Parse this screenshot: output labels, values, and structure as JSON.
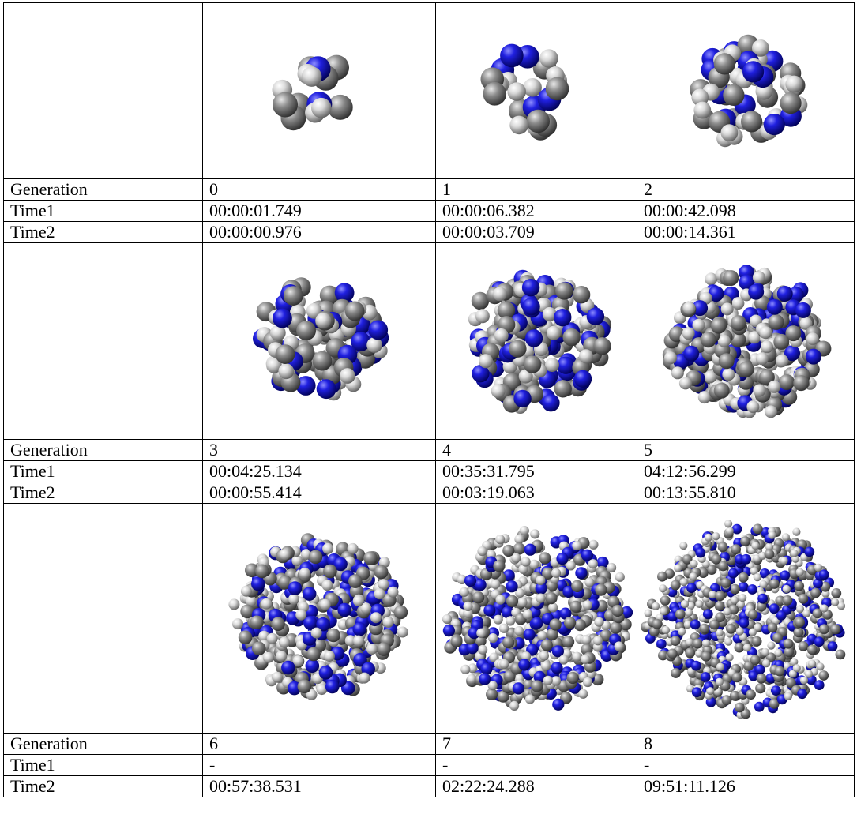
{
  "table": {
    "row_labels": [
      "Generation",
      "Time1",
      "Time2"
    ],
    "groups": [
      {
        "generation": [
          "0",
          "1",
          "2"
        ],
        "time1": [
          "00:00:01.749",
          "00:00:06.382",
          "00:00:42.098"
        ],
        "time2": [
          "00:00:00.976",
          "00:00:03.709",
          "00:00:14.361"
        ]
      },
      {
        "generation": [
          "3",
          "4",
          "5"
        ],
        "time1": [
          "00:04:25.134",
          "00:35:31.795",
          "04:12:56.299"
        ],
        "time2": [
          "00:00:55.414",
          "00:03:19.063",
          "00:13:55.810"
        ]
      },
      {
        "generation": [
          "6",
          "7",
          "8"
        ],
        "time1": [
          "-",
          "-",
          "-"
        ],
        "time2": [
          "00:57:38.531",
          "02:22:24.288",
          "09:51:11.126"
        ]
      }
    ]
  }
}
